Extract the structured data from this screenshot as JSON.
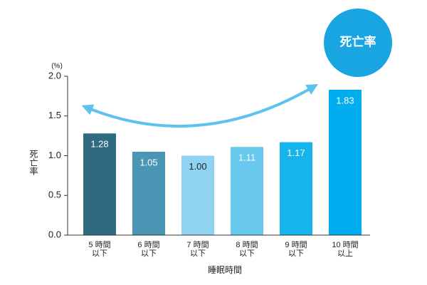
{
  "chart_data": {
    "type": "bar",
    "badge": "死亡率",
    "y_unit": "(%)",
    "ylabel": "死亡率",
    "xlabel": "睡眠時間",
    "categories": [
      [
        "5 時間",
        "以下"
      ],
      [
        "6 時間",
        "以下"
      ],
      [
        "7 時間",
        "以下"
      ],
      [
        "8 時間",
        "以下"
      ],
      [
        "9 時間",
        "以下"
      ],
      [
        "10 時間",
        "以上"
      ]
    ],
    "values": [
      1.28,
      1.05,
      1.0,
      1.11,
      1.17,
      1.83
    ],
    "value_labels": [
      "1.28",
      "1.05",
      "1.00",
      "1.11",
      "1.17",
      "1.83"
    ],
    "colors": [
      "#2f6b80",
      "#4b96b4",
      "#8fd3f2",
      "#68c8ee",
      "#16b4ec",
      "#00aeef"
    ],
    "ylim": [
      0,
      2
    ],
    "yticks": [
      {
        "value": 0,
        "label": "0.0"
      },
      {
        "value": 0.5,
        "label": "0.5"
      },
      {
        "value": 1,
        "label": "1.0"
      },
      {
        "value": 1.5,
        "label": "1.5"
      },
      {
        "value": 2,
        "label": "2.0"
      }
    ]
  }
}
